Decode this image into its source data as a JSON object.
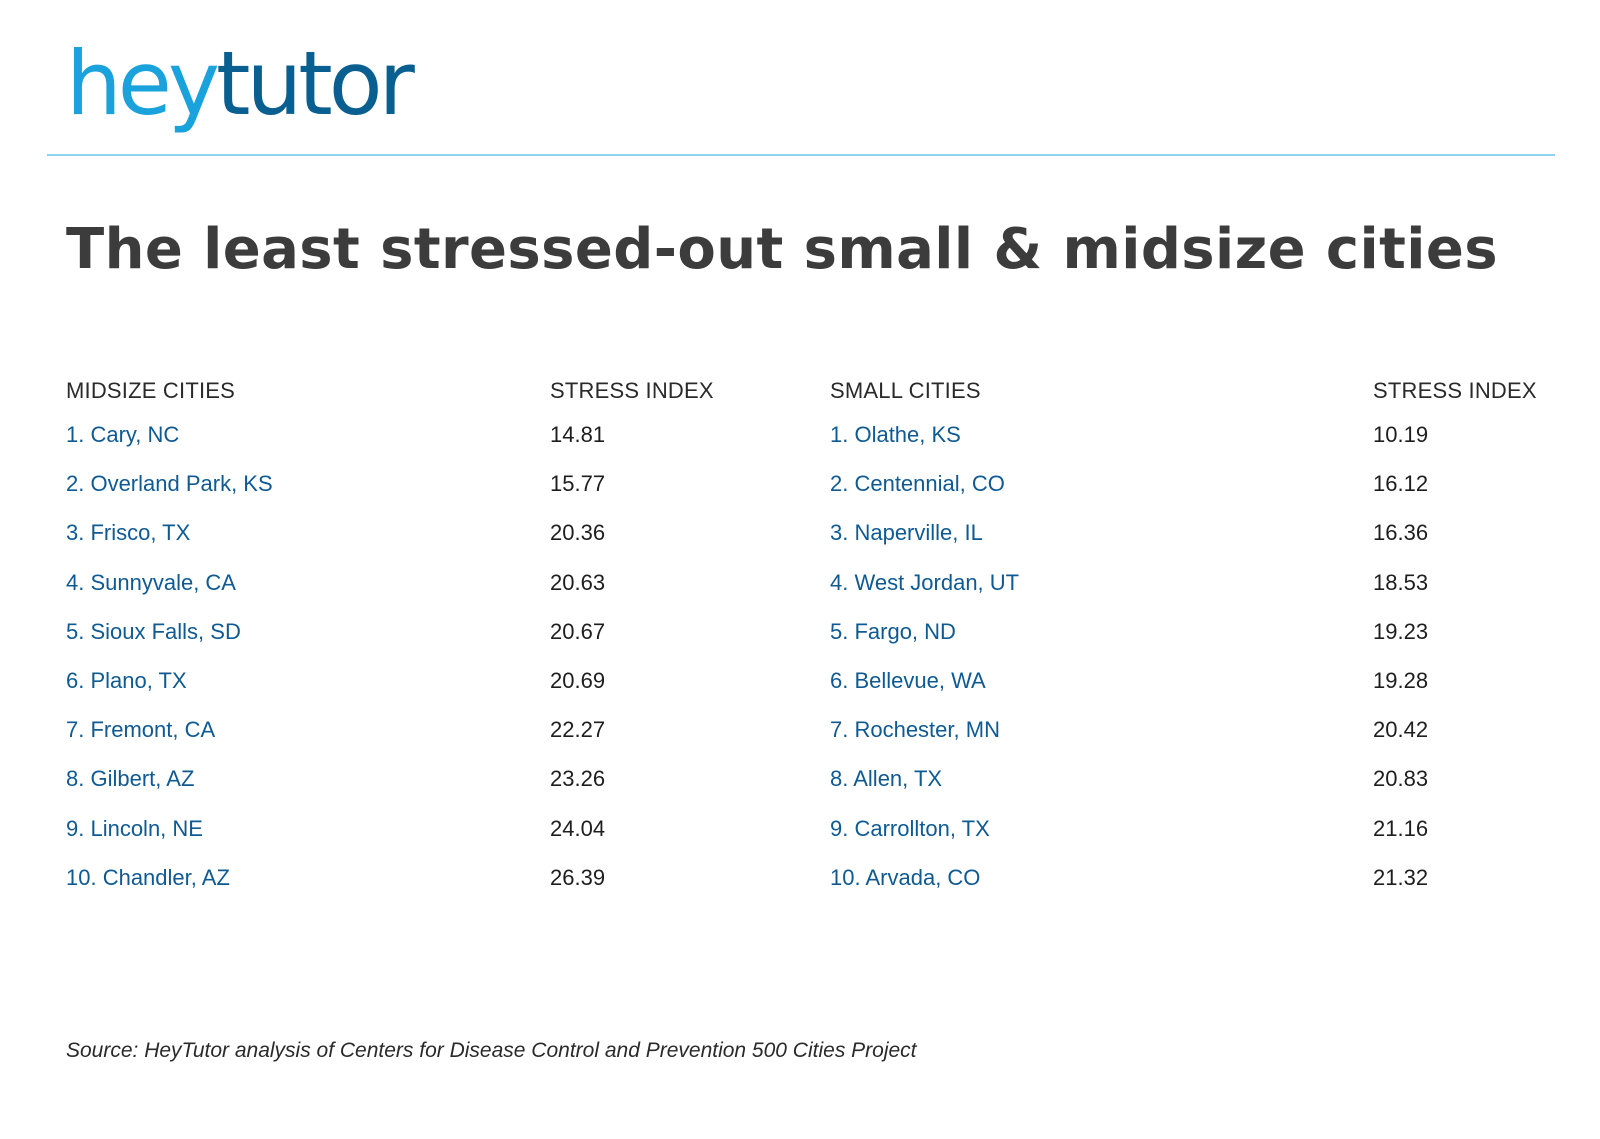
{
  "brand": {
    "logo_part1": "hey",
    "logo_part2": "tutor"
  },
  "colors": {
    "brand_light": "#1aa2dc",
    "brand_dark": "#0a5f91",
    "rule": "#8fd3f1",
    "title": "#3c3c3c",
    "city_name": "#0f5a92"
  },
  "chart_data": {
    "type": "table",
    "title": "The least stressed-out small & midsize cities",
    "tables": [
      {
        "columns": [
          "MIDSIZE CITIES",
          "STRESS INDEX"
        ],
        "rows": [
          [
            "1. Cary, NC",
            "14.81"
          ],
          [
            "2. Overland Park, KS",
            "15.77"
          ],
          [
            "3. Frisco, TX",
            "20.36"
          ],
          [
            "4. Sunnyvale, CA",
            "20.63"
          ],
          [
            "5. Sioux Falls, SD",
            "20.67"
          ],
          [
            "6. Plano, TX",
            "20.69"
          ],
          [
            "7. Fremont, CA",
            "22.27"
          ],
          [
            "8. Gilbert, AZ",
            "23.26"
          ],
          [
            "9. Lincoln, NE",
            "24.04"
          ],
          [
            "10. Chandler, AZ",
            "26.39"
          ]
        ]
      },
      {
        "columns": [
          "SMALL CITIES",
          "STRESS INDEX"
        ],
        "rows": [
          [
            "1. Olathe, KS",
            "10.19"
          ],
          [
            "2. Centennial, CO",
            "16.12"
          ],
          [
            "3. Naperville, IL",
            "16.36"
          ],
          [
            "4. West Jordan, UT",
            "18.53"
          ],
          [
            "5. Fargo, ND",
            "19.23"
          ],
          [
            "6. Bellevue, WA",
            "19.28"
          ],
          [
            "7. Rochester, MN",
            "20.42"
          ],
          [
            "8. Allen, TX",
            "20.83"
          ],
          [
            "9. Carrollton, TX",
            "21.16"
          ],
          [
            "10. Arvada, CO",
            "21.32"
          ]
        ]
      }
    ],
    "source": "Source: HeyTutor analysis of Centers for Disease Control and Prevention 500 Cities Project"
  }
}
